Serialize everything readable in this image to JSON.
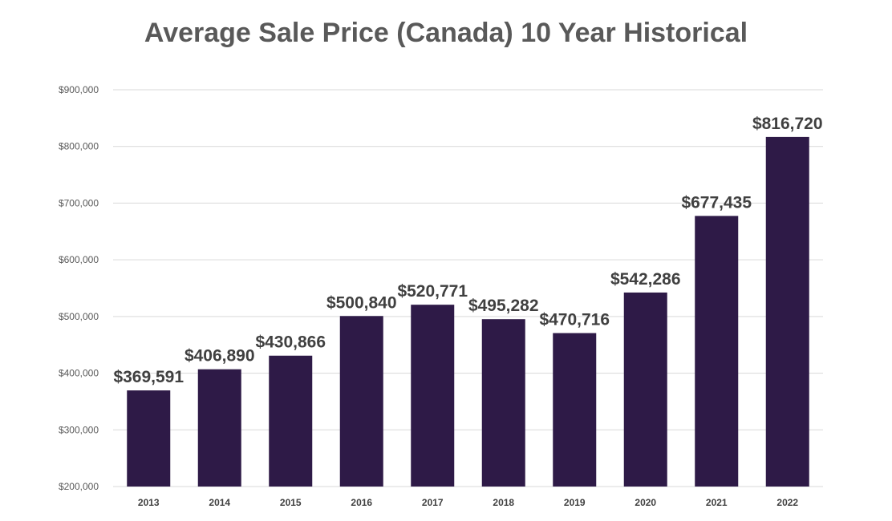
{
  "chart_data": {
    "type": "bar",
    "title": "Average Sale Price (Canada) 10 Year Historical",
    "xlabel": "",
    "ylabel": "",
    "categories": [
      "2013",
      "2014",
      "2015",
      "2016",
      "2017",
      "2018",
      "2019",
      "2020",
      "2021",
      "2022"
    ],
    "values": [
      369591,
      406890,
      430866,
      500840,
      520771,
      495282,
      470716,
      542286,
      677435,
      816720
    ],
    "value_labels": [
      "$369,591",
      "$406,890",
      "$430,866",
      "$500,840",
      "$520,771",
      "$495,282",
      "$470,716",
      "$542,286",
      "$677,435",
      "$816,720"
    ],
    "ylim": [
      200000,
      900000
    ],
    "y_ticks": [
      200000,
      300000,
      400000,
      500000,
      600000,
      700000,
      800000,
      900000
    ],
    "y_tick_labels": [
      "$200,000",
      "$300,000",
      "$400,000",
      "$500,000",
      "$600,000",
      "$700,000",
      "$800,000",
      "$900,000"
    ],
    "grid": true,
    "legend": "none",
    "bar_color": "#2e1a47",
    "grid_color": "#d9d9d9"
  }
}
